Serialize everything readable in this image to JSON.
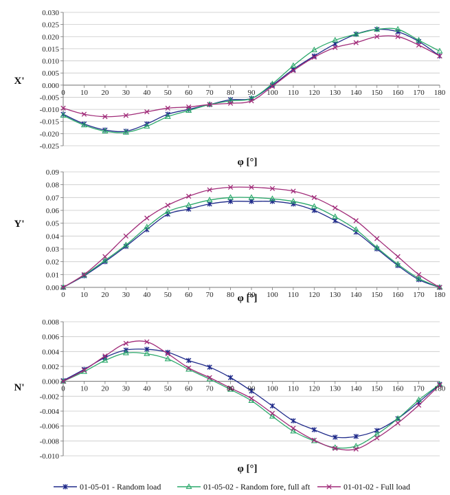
{
  "chart_data": [
    {
      "type": "line",
      "ylabel": "X'",
      "xlabel": "φ [°]",
      "x": [
        0,
        10,
        20,
        30,
        40,
        50,
        60,
        70,
        80,
        90,
        100,
        110,
        120,
        130,
        140,
        150,
        160,
        170,
        180
      ],
      "xlim": [
        0,
        180
      ],
      "ylim": [
        -0.025,
        0.03
      ],
      "ystep": 0.005,
      "ydecimals": 3,
      "grid": true,
      "series": [
        {
          "name": "01-05-01 - Random load",
          "values": [
            -0.012,
            -0.016,
            -0.0185,
            -0.019,
            -0.016,
            -0.012,
            -0.01,
            -0.008,
            -0.006,
            -0.0055,
            0.0,
            0.0065,
            0.012,
            0.017,
            0.021,
            0.023,
            0.022,
            0.018,
            0.012
          ]
        },
        {
          "name": "01-05-02 - Random fore, full aft",
          "values": [
            -0.0125,
            -0.0165,
            -0.019,
            -0.0195,
            -0.017,
            -0.013,
            -0.0105,
            -0.008,
            -0.0065,
            -0.0055,
            0.0005,
            0.008,
            0.0145,
            0.0185,
            0.021,
            0.023,
            0.023,
            0.0185,
            0.014
          ]
        },
        {
          "name": "01-01-02 - Full load",
          "values": [
            -0.0095,
            -0.012,
            -0.013,
            -0.0125,
            -0.011,
            -0.0095,
            -0.009,
            -0.008,
            -0.0075,
            -0.0065,
            -0.0005,
            0.006,
            0.0115,
            0.0155,
            0.0175,
            0.02,
            0.02,
            0.0165,
            0.012
          ]
        }
      ]
    },
    {
      "type": "line",
      "ylabel": "Y'",
      "xlabel": "φ [°]",
      "x": [
        0,
        10,
        20,
        30,
        40,
        50,
        60,
        70,
        80,
        90,
        100,
        110,
        120,
        130,
        140,
        150,
        160,
        170,
        180
      ],
      "xlim": [
        0,
        180
      ],
      "ylim": [
        0,
        0.09
      ],
      "ystep": 0.01,
      "ydecimals": 2,
      "grid": true,
      "series": [
        {
          "name": "01-05-01 - Random load",
          "values": [
            0,
            0.009,
            0.02,
            0.032,
            0.045,
            0.057,
            0.061,
            0.065,
            0.067,
            0.067,
            0.067,
            0.065,
            0.06,
            0.052,
            0.043,
            0.03,
            0.017,
            0.006,
            0
          ]
        },
        {
          "name": "01-05-02 - Random fore, full aft",
          "values": [
            0,
            0.0095,
            0.021,
            0.033,
            0.047,
            0.059,
            0.064,
            0.068,
            0.07,
            0.07,
            0.069,
            0.067,
            0.063,
            0.055,
            0.045,
            0.031,
            0.018,
            0.007,
            0
          ]
        },
        {
          "name": "01-01-02 - Full load",
          "values": [
            0,
            0.01,
            0.024,
            0.04,
            0.054,
            0.064,
            0.071,
            0.076,
            0.078,
            0.078,
            0.077,
            0.075,
            0.07,
            0.062,
            0.052,
            0.038,
            0.024,
            0.01,
            0
          ]
        }
      ]
    },
    {
      "type": "line",
      "ylabel": "N'",
      "xlabel": "φ [°]",
      "x": [
        0,
        10,
        20,
        30,
        40,
        50,
        60,
        70,
        80,
        90,
        100,
        110,
        120,
        130,
        140,
        150,
        160,
        170,
        180
      ],
      "xlim": [
        0,
        180
      ],
      "ylim": [
        -0.01,
        0.008
      ],
      "ystep": 0.002,
      "ydecimals": 3,
      "grid": true,
      "series": [
        {
          "name": "01-05-01 - Random load",
          "values": [
            0.0001,
            0.0016,
            0.0032,
            0.0042,
            0.0043,
            0.0039,
            0.0028,
            0.0019,
            0.0005,
            -0.0013,
            -0.0033,
            -0.0053,
            -0.0065,
            -0.0075,
            -0.0074,
            -0.0066,
            -0.005,
            -0.0028,
            -0.0004
          ]
        },
        {
          "name": "01-05-02 - Random fore, full aft",
          "values": [
            0,
            0.0013,
            0.0028,
            0.0038,
            0.0037,
            0.003,
            0.0016,
            0.0003,
            -0.0011,
            -0.0026,
            -0.0047,
            -0.0067,
            -0.008,
            -0.0089,
            -0.0087,
            -0.0071,
            -0.005,
            -0.0025,
            -0.0004
          ]
        },
        {
          "name": "01-01-02 - Full load",
          "values": [
            0,
            0.0015,
            0.0034,
            0.0051,
            0.0053,
            0.0037,
            0.0018,
            0.0005,
            -0.0009,
            -0.0023,
            -0.0043,
            -0.0063,
            -0.0079,
            -0.009,
            -0.0091,
            -0.0076,
            -0.0056,
            -0.0032,
            -0.0005
          ]
        }
      ]
    }
  ],
  "legend": {
    "placement": "bottom",
    "items": [
      {
        "label": "01-05-01 - Random load",
        "color": "#1f2a8a",
        "marker": "star"
      },
      {
        "label": "01-05-02 - Random fore, full aft",
        "color": "#2aa86a",
        "marker": "triangle"
      },
      {
        "label": "01-01-02 - Full load",
        "color": "#a02a78",
        "marker": "x"
      }
    ]
  }
}
